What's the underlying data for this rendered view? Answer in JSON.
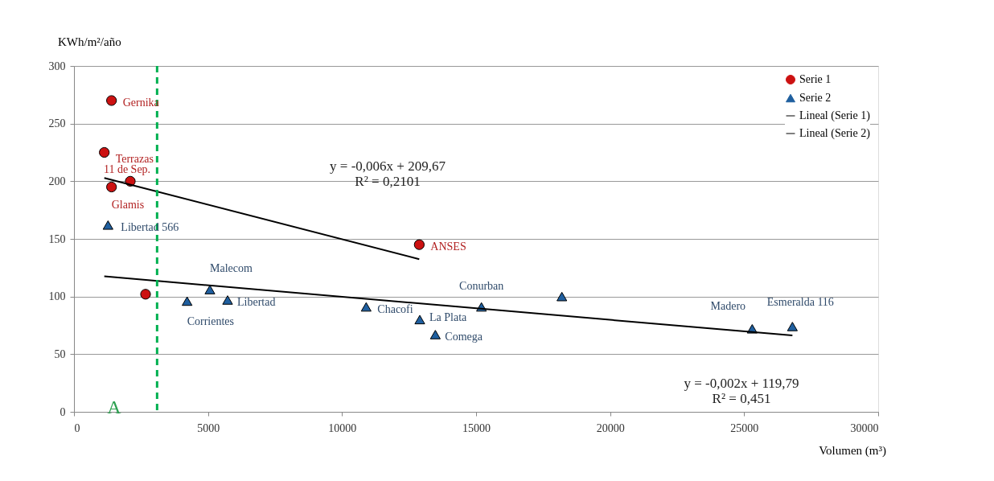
{
  "chart_data": {
    "type": "scatter",
    "xlabel": "Volumen (m³)",
    "ylabel": "KWh/m²/año",
    "xlim": [
      0,
      30000
    ],
    "xticks": [
      0,
      5000,
      10000,
      15000,
      20000,
      25000,
      30000
    ],
    "ylim": [
      0,
      300
    ],
    "yticks": [
      0,
      50,
      100,
      150,
      200,
      250,
      300
    ],
    "grid": "y",
    "legend": "top right",
    "series": [
      {
        "name": "Serie 1",
        "color": "#cc1111",
        "marker": "circle",
        "x": [
          1400,
          1130,
          2100,
          1400,
          2670,
          12880
        ],
        "values": [
          270,
          225,
          200,
          195,
          102,
          145
        ],
        "value_labels": [
          "Gernika",
          "Terrazas",
          "11 de Sep.",
          "Glamis",
          null,
          "ANSES"
        ]
      },
      {
        "name": "Serie 2",
        "color": "#1f5f9f",
        "marker": "triangle",
        "x": [
          1270,
          4220,
          5070,
          5730,
          10900,
          12900,
          13480,
          15200,
          18200,
          25300,
          26800
        ],
        "values": [
          162,
          96,
          106,
          97,
          91,
          80,
          67,
          91,
          100,
          72,
          74
        ],
        "value_labels": [
          "Libertad 566",
          "Corrientes",
          "Malecom",
          "Libertad",
          "Chacofi",
          "La Plata",
          "Comega",
          "Conurban",
          null,
          "Madero",
          "Esmeralda 116"
        ]
      },
      {
        "name": "Lineal (Serie 1)",
        "type": "line",
        "color": "#000000",
        "x": [
          1130,
          12880
        ],
        "values": [
          202.9,
          132.4
        ]
      },
      {
        "name": "Lineal (Serie 2)",
        "type": "line",
        "color": "#000000",
        "x": [
          1130,
          26800
        ],
        "values": [
          117.5,
          66.2
        ]
      }
    ],
    "ref_lines": [
      {
        "axis": "x",
        "value": 3100,
        "color": "#00b050",
        "line_style": "dashed"
      }
    ],
    "annotations": [
      "y = -0,006x + 209,67\nR² = 0,2101",
      "y = -0,002x + 119,79\nR² = 0,451",
      "A"
    ]
  }
}
